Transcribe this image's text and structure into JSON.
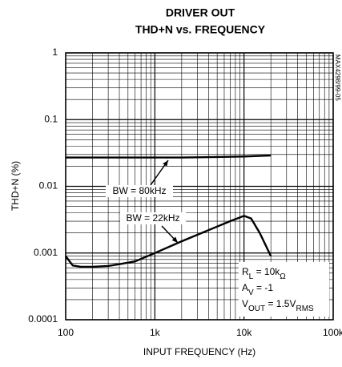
{
  "chart_data": {
    "type": "line",
    "title": "DRIVER OUT",
    "subtitle": "THD+N vs. FREQUENCY",
    "xlabel": "INPUT FREQUENCY (Hz)",
    "ylabel": "THD+N (%)",
    "side_note": "MAX4298/99-05",
    "xlog": true,
    "ylog": true,
    "grid": true,
    "xlim": [
      100,
      100000
    ],
    "ylim": [
      0.0001,
      1
    ],
    "xticks": [
      {
        "value": 100,
        "label": "100"
      },
      {
        "value": 1000,
        "label": "1k"
      },
      {
        "value": 10000,
        "label": "10k"
      },
      {
        "value": 100000,
        "label": "100k"
      }
    ],
    "yticks": [
      0.0001,
      0.001,
      0.01,
      0.1,
      1
    ],
    "xminor": [
      200,
      300,
      400,
      500,
      600,
      700,
      800,
      900,
      2000,
      3000,
      4000,
      5000,
      6000,
      7000,
      8000,
      9000,
      20000,
      30000,
      40000,
      50000,
      60000,
      70000,
      80000,
      90000
    ],
    "yminor": [
      0.0002,
      0.0003,
      0.0004,
      0.0005,
      0.0006,
      0.0007,
      0.0008,
      0.0009,
      0.002,
      0.003,
      0.004,
      0.005,
      0.006,
      0.007,
      0.008,
      0.009,
      0.02,
      0.03,
      0.04,
      0.05,
      0.06,
      0.07,
      0.08,
      0.09,
      0.2,
      0.3,
      0.4,
      0.5,
      0.6,
      0.7,
      0.8,
      0.9
    ],
    "series": [
      {
        "name": "BW = 80kHz",
        "color": "#000000",
        "x": [
          100,
          200,
          500,
          1000,
          2000,
          5000,
          10000,
          15000,
          20000
        ],
        "values": [
          0.027,
          0.027,
          0.027,
          0.027,
          0.027,
          0.0275,
          0.028,
          0.0285,
          0.029
        ]
      },
      {
        "name": "BW = 22kHz",
        "color": "#000000",
        "x": [
          100,
          120,
          150,
          200,
          300,
          400,
          600,
          1000,
          2000,
          4000,
          7000,
          10000,
          12000,
          15000,
          20000
        ],
        "values": [
          0.0009,
          0.00065,
          0.00062,
          0.00062,
          0.00064,
          0.00068,
          0.00075,
          0.001,
          0.0015,
          0.0022,
          0.003,
          0.0036,
          0.0033,
          0.002,
          0.0009
        ]
      }
    ],
    "conditions": [
      [
        "R",
        "L",
        " = 10k",
        "Ω"
      ],
      [
        "A",
        "V",
        " = -1"
      ],
      [
        "V",
        "OUT",
        " = 1.5V",
        "RMS"
      ]
    ]
  }
}
